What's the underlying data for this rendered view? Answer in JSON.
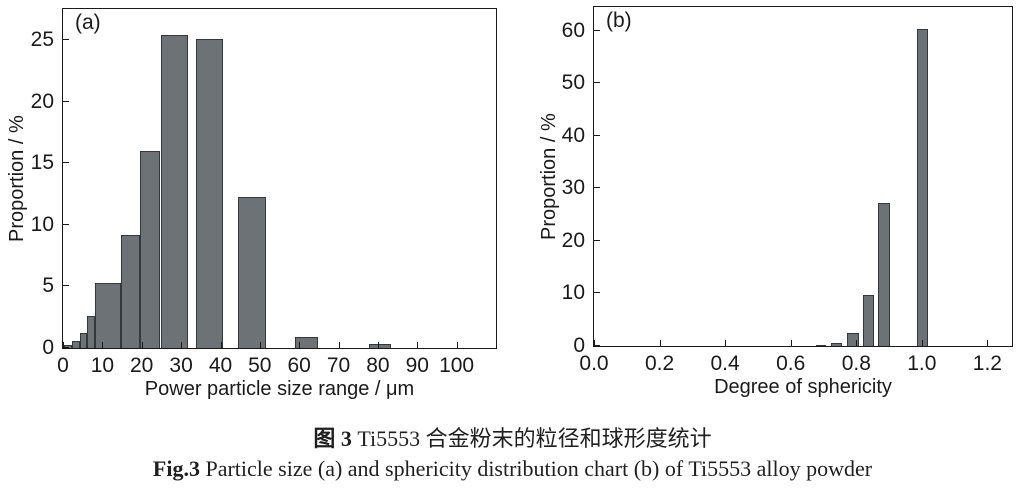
{
  "figure": {
    "background": "#ffffff",
    "bar_fill": "#6d7277",
    "bar_border": "#35383b",
    "axis_color": "#1a1a1a"
  },
  "chart_data": [
    {
      "type": "bar",
      "panel_label": "(a)",
      "title": "",
      "xlabel": "Power particle size range / μm",
      "ylabel": "Proportion / %",
      "xlim": [
        0,
        110
      ],
      "ylim": [
        0,
        27.5
      ],
      "grid": false,
      "x_ticks": [
        0,
        10,
        20,
        30,
        40,
        50,
        60,
        70,
        80,
        90,
        100
      ],
      "x_tick_labels": [
        "0",
        "10",
        "20",
        "30",
        "40",
        "50",
        "60",
        "70",
        "80",
        "90",
        "100"
      ],
      "y_ticks": [
        0,
        5,
        10,
        15,
        20,
        25
      ],
      "y_tick_labels": [
        "0",
        "5",
        "10",
        "15",
        "20",
        "25"
      ],
      "bars": [
        {
          "x0": 0.3,
          "x1": 2.2,
          "value": 0.25
        },
        {
          "x0": 2.2,
          "x1": 4.2,
          "value": 0.55
        },
        {
          "x0": 4.2,
          "x1": 6.2,
          "value": 1.25
        },
        {
          "x0": 6.2,
          "x1": 8.2,
          "value": 2.6
        },
        {
          "x0": 8.2,
          "x1": 14.8,
          "value": 5.3
        },
        {
          "x0": 14.8,
          "x1": 19.5,
          "value": 9.2
        },
        {
          "x0": 19.5,
          "x1": 24.7,
          "value": 16.0
        },
        {
          "x0": 25.0,
          "x1": 31.8,
          "value": 25.4
        },
        {
          "x0": 33.8,
          "x1": 40.7,
          "value": 25.1
        },
        {
          "x0": 44.5,
          "x1": 51.5,
          "value": 12.25
        },
        {
          "x0": 59.0,
          "x1": 64.7,
          "value": 0.9
        },
        {
          "x0": 77.8,
          "x1": 83.3,
          "value": 0.3
        }
      ]
    },
    {
      "type": "bar",
      "panel_label": "(b)",
      "title": "",
      "xlabel": "Degree of sphericity",
      "ylabel": "Proportion / %",
      "xlim": [
        0,
        1.275
      ],
      "ylim": [
        0,
        64.5
      ],
      "grid": false,
      "x_ticks": [
        0.0,
        0.2,
        0.4,
        0.6,
        0.8,
        1.0,
        1.2
      ],
      "x_tick_labels": [
        "0.0",
        "0.2",
        "0.4",
        "0.6",
        "0.8",
        "1.0",
        "1.2"
      ],
      "y_ticks": [
        0,
        10,
        20,
        30,
        40,
        50,
        60
      ],
      "y_tick_labels": [
        "0",
        "10",
        "20",
        "30",
        "40",
        "50",
        "60"
      ],
      "bars": [
        {
          "x0": 0.678,
          "x1": 0.708,
          "value": 0.25
        },
        {
          "x0": 0.723,
          "x1": 0.757,
          "value": 0.6
        },
        {
          "x0": 0.773,
          "x1": 0.81,
          "value": 2.4
        },
        {
          "x0": 0.819,
          "x1": 0.854,
          "value": 9.7
        },
        {
          "x0": 0.866,
          "x1": 0.902,
          "value": 27.2
        },
        {
          "x0": 0.984,
          "x1": 1.02,
          "value": 60.4
        }
      ]
    }
  ],
  "caption": {
    "zh_prefix": "图 3",
    "zh_rest": " Ti5553 合金粉末的粒径和球形度统计",
    "en_prefix": "Fig.3",
    "en_rest": " Particle size (a) and sphericity distribution chart (b) of Ti5553 alloy powder"
  }
}
